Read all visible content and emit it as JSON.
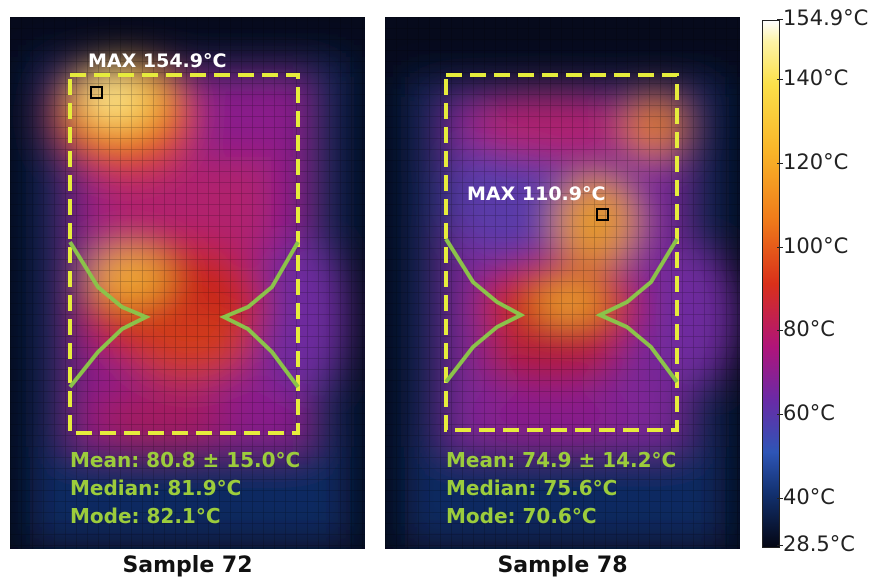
{
  "panels": [
    {
      "id": "sample-72",
      "caption": "Sample 72",
      "max_label": "MAX 154.9°C",
      "stats": {
        "mean": "Mean: 80.8 ± 15.0°C",
        "median": "Median: 81.9°C",
        "mode": "Mode: 82.1°C"
      }
    },
    {
      "id": "sample-78",
      "caption": "Sample 78",
      "max_label": "MAX 110.9°C",
      "stats": {
        "mean": "Mean: 74.9 ± 14.2°C",
        "median": "Median: 75.6°C",
        "mode": "Mode: 70.6°C"
      }
    }
  ],
  "colorbar": {
    "max_label": "154.9°C",
    "min_label": "28.5°C",
    "ticks": [
      "140°C",
      "120°C",
      "100°C",
      "80°C",
      "60°C",
      "40°C"
    ]
  },
  "colors": {
    "outline_yellow": "#e6ec3c",
    "outline_green": "#8bc34a",
    "stats_text": "#9ccc3c"
  }
}
